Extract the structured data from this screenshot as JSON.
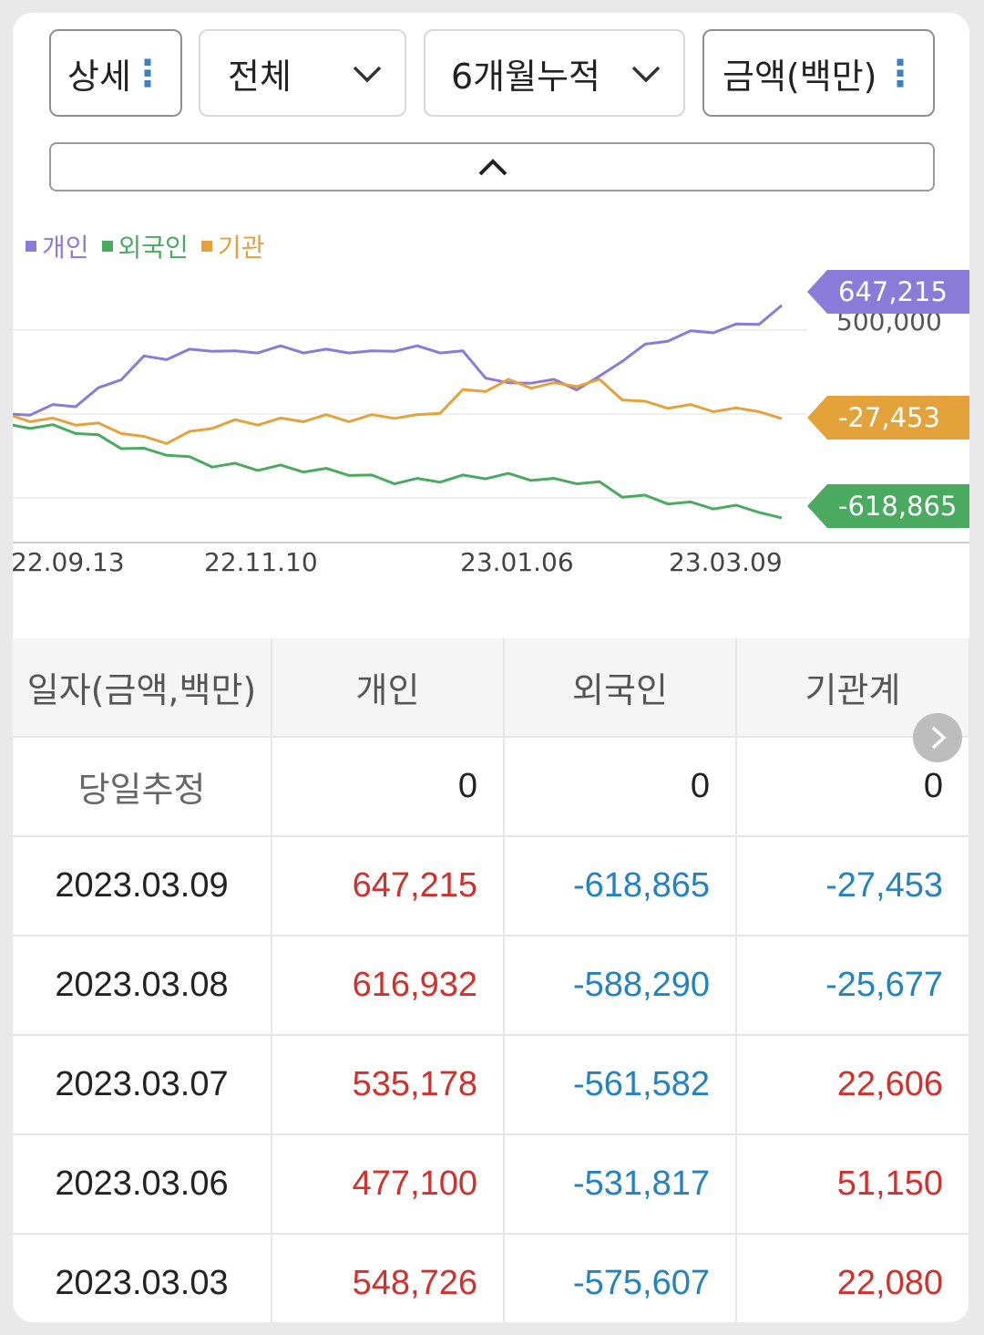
{
  "controls": {
    "mode": "상세",
    "market": "전체",
    "period": "6개월누적",
    "unit": "금액(백만)"
  },
  "chart_data": {
    "type": "line",
    "legend_position": "top-left",
    "series": [
      {
        "name": "개인",
        "color": "#8b7bd8",
        "last_value": "647,215"
      },
      {
        "name": "외국인",
        "color": "#4aaa60",
        "last_value": "-618,865"
      },
      {
        "name": "기관",
        "color": "#e3a33a",
        "last_value": "-27,453"
      }
    ],
    "x_ticks": [
      "22.09.13",
      "22.11.10",
      "23.01.06",
      "23.03.09"
    ],
    "y_gridline_label": "500,000",
    "ylim": [
      -700000,
      700000
    ],
    "approx_series_values": {
      "개인": [
        0,
        10000,
        40000,
        60000,
        140000,
        220000,
        330000,
        340000,
        370000,
        390000,
        360000,
        380000,
        390000,
        380000,
        370000,
        380000,
        360000,
        390000,
        390000,
        380000,
        360000,
        230000,
        170000,
        200000,
        190000,
        160000,
        210000,
        330000,
        400000,
        450000,
        480000,
        500000,
        520000,
        550000,
        647215
      ],
      "외국인": [
        -60000,
        -70000,
        -80000,
        -100000,
        -140000,
        -190000,
        -220000,
        -230000,
        -270000,
        -300000,
        -310000,
        -320000,
        -320000,
        -330000,
        -340000,
        -350000,
        -380000,
        -400000,
        -400000,
        -390000,
        -380000,
        -370000,
        -370000,
        -380000,
        -400000,
        -400000,
        -420000,
        -480000,
        -500000,
        -520000,
        -540000,
        -550000,
        -560000,
        -570000,
        -618865
      ],
      "기관": [
        0,
        -30000,
        -40000,
        -50000,
        -70000,
        -100000,
        -150000,
        -160000,
        -120000,
        -70000,
        -50000,
        -50000,
        -40000,
        -30000,
        -20000,
        -30000,
        -20000,
        -10000,
        -20000,
        20000,
        130000,
        150000,
        190000,
        170000,
        170000,
        180000,
        190000,
        100000,
        60000,
        50000,
        40000,
        30000,
        20000,
        30000,
        -27453
      ]
    }
  },
  "table": {
    "headers": [
      "일자(금액,백만)",
      "개인",
      "외국인",
      "기관계"
    ],
    "rows": [
      {
        "date": "당일추정",
        "individual": "0",
        "foreign": "0",
        "institution": "0"
      },
      {
        "date": "2023.03.09",
        "individual": "647,215",
        "foreign": "-618,865",
        "institution": "-27,453"
      },
      {
        "date": "2023.03.08",
        "individual": "616,932",
        "foreign": "-588,290",
        "institution": "-25,677"
      },
      {
        "date": "2023.03.07",
        "individual": "535,178",
        "foreign": "-561,582",
        "institution": "22,606"
      },
      {
        "date": "2023.03.06",
        "individual": "477,100",
        "foreign": "-531,817",
        "institution": "51,150"
      },
      {
        "date": "2023.03.03",
        "individual": "548,726",
        "foreign": "-575,607",
        "institution": "22,080"
      }
    ]
  }
}
